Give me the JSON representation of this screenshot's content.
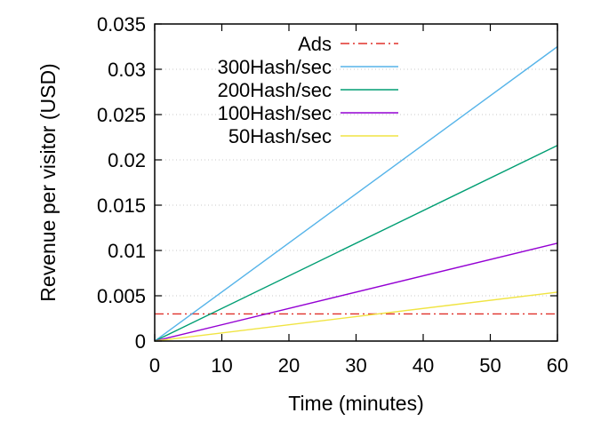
{
  "chart_data": {
    "type": "line",
    "title": "",
    "xlabel": "Time (minutes)",
    "ylabel": "Revenue per visitor (USD)",
    "xlim": [
      0,
      60
    ],
    "ylim": [
      0,
      0.035
    ],
    "xticks": [
      0,
      10,
      20,
      30,
      40,
      50,
      60
    ],
    "xtick_labels": [
      "0",
      "10",
      "20",
      "30",
      "40",
      "50",
      "60"
    ],
    "yticks": [
      0,
      0.005,
      0.01,
      0.015,
      0.02,
      0.025,
      0.03,
      0.035
    ],
    "ytick_labels": [
      "0",
      "0.005",
      "0.01",
      "0.015",
      "0.02",
      "0.025",
      "0.03",
      "0.035"
    ],
    "grid": true,
    "legend_position": "top-left",
    "series": [
      {
        "name": "Ads",
        "x": [
          0,
          60
        ],
        "y": [
          0.003,
          0.003
        ],
        "color": "#e0302a",
        "style": "dash-dot"
      },
      {
        "name": "300Hash/sec",
        "x": [
          0,
          60
        ],
        "y": [
          0,
          0.0325
        ],
        "color": "#56b4e9",
        "style": "solid"
      },
      {
        "name": "200Hash/sec",
        "x": [
          0,
          60
        ],
        "y": [
          0,
          0.0216
        ],
        "color": "#009e73",
        "style": "solid"
      },
      {
        "name": "100Hash/sec",
        "x": [
          0,
          60
        ],
        "y": [
          0,
          0.0108
        ],
        "color": "#9400d3",
        "style": "solid"
      },
      {
        "name": "50Hash/sec",
        "x": [
          0,
          60
        ],
        "y": [
          0,
          0.0054
        ],
        "color": "#f0e442",
        "style": "solid"
      }
    ]
  }
}
